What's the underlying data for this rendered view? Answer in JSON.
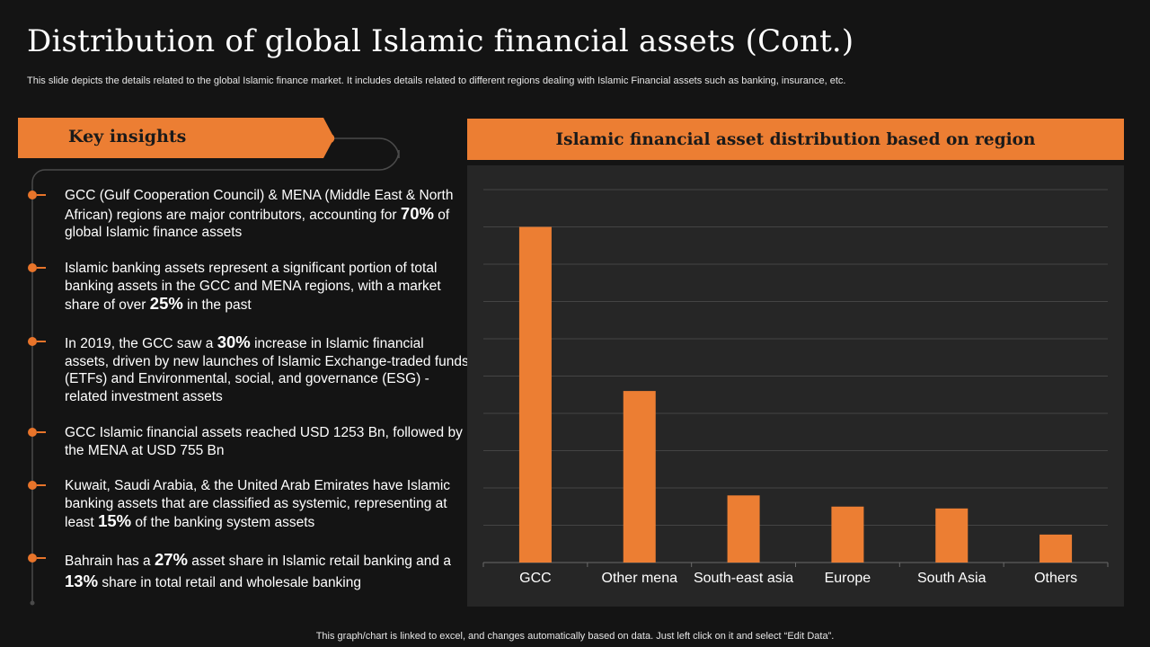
{
  "slide": {
    "title": "Distribution of global Islamic financial assets (Cont.)",
    "subtitle": "This slide depicts the details related to the global Islamic finance market. It includes details related to different regions dealing with Islamic Financial assets such as banking, insurance, etc.",
    "footer": "This graph/chart is linked to excel,  and changes automatically based on data. Just left click on it and select “Edit Data”."
  },
  "insights": {
    "heading": "Key insights",
    "items": [
      {
        "pre": "GCC (Gulf Cooperation Council) & MENA (Middle East & North African) regions are major contributors,  accounting for ",
        "hl": "70%",
        "post": " of global Islamic  finance assets"
      },
      {
        "pre": "Islamic banking assets represent a significant portion of total banking assets in the GCC and MENA regions, with a market share of over ",
        "hl": "25%",
        "post": " in the past"
      },
      {
        "pre": "In 2019, the GCC saw a ",
        "hl": "30%",
        "post": " increase in Islamic financial assets, driven by new launches  of Islamic Exchange-traded funds (ETFs) and Environmental,  social, and governance (ESG) -related investment  assets"
      },
      {
        "pre": "GCC Islamic financial assets reached USD 1253 Bn, followed by the MENA at USD 755 Bn",
        "hl": "",
        "post": ""
      },
      {
        "pre": "Kuwait,  Saudi Arabia, & the United Arab Emirates have Islamic banking assets that are classified as systemic, representing at least ",
        "hl": "15%",
        "post": " of the banking system assets"
      },
      {
        "pre": "Bahrain has a ",
        "hl": "27%",
        "post": " asset share  in Islamic  retail banking and a ",
        "hl2": "13%",
        "post2": " share  in total retail and wholesale banking"
      }
    ]
  },
  "colors": {
    "accent": "#ec7e33",
    "background": "#141414",
    "panel": "#262626"
  },
  "chart_data": {
    "type": "bar",
    "title": "Islamic financial asset distribution based on region",
    "categories": [
      "GCC",
      "Other mena",
      "South-east asia",
      "Europe",
      "South Asia",
      "Others"
    ],
    "values": [
      90,
      46,
      18,
      15,
      14.5,
      7.5
    ],
    "ylim": [
      0,
      100
    ],
    "gridlines": 10,
    "grid": true,
    "xlabel": "",
    "ylabel": ""
  }
}
